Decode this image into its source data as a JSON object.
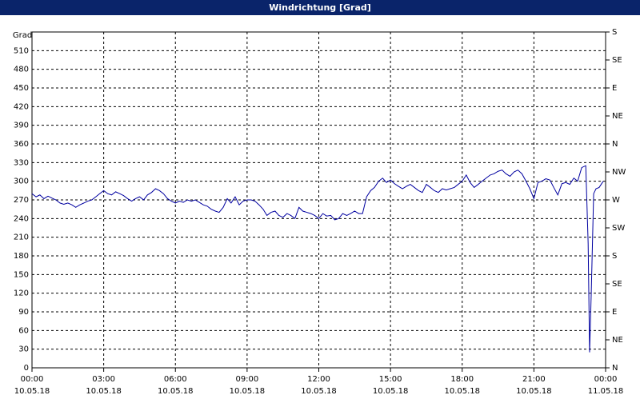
{
  "chart_data": {
    "type": "line",
    "title": "Windrichtung [Grad]",
    "ylabel": "Grad",
    "xlim": [
      0,
      24
    ],
    "xticks": [
      {
        "value": 0,
        "label": "00:00",
        "date": "10.05.18"
      },
      {
        "value": 3,
        "label": "03:00",
        "date": "10.05.18"
      },
      {
        "value": 6,
        "label": "06:00",
        "date": "10.05.18"
      },
      {
        "value": 9,
        "label": "09:00",
        "date": "10.05.18"
      },
      {
        "value": 12,
        "label": "12:00",
        "date": "10.05.18"
      },
      {
        "value": 15,
        "label": "15:00",
        "date": "10.05.18"
      },
      {
        "value": 18,
        "label": "18:00",
        "date": "10.05.18"
      },
      {
        "value": 21,
        "label": "21:00",
        "date": "10.05.18"
      },
      {
        "value": 24,
        "label": "00:00",
        "date": "11.05.18"
      }
    ],
    "ylim": [
      0,
      540
    ],
    "yticks": [
      0,
      30,
      60,
      90,
      120,
      150,
      180,
      210,
      240,
      270,
      300,
      330,
      360,
      390,
      420,
      450,
      480,
      510
    ],
    "y2lim": [
      0,
      540
    ],
    "y2ticks": [
      {
        "value": 0,
        "label": "N"
      },
      {
        "value": 45,
        "label": "NE"
      },
      {
        "value": 90,
        "label": "E"
      },
      {
        "value": 135,
        "label": "SE"
      },
      {
        "value": 180,
        "label": "S"
      },
      {
        "value": 225,
        "label": "SW"
      },
      {
        "value": 270,
        "label": "W"
      },
      {
        "value": 315,
        "label": "NW"
      },
      {
        "value": 360,
        "label": "N"
      },
      {
        "value": 405,
        "label": "NE"
      },
      {
        "value": 450,
        "label": "E"
      },
      {
        "value": 495,
        "label": "SE"
      },
      {
        "value": 540,
        "label": "S"
      }
    ],
    "grid": true,
    "series": [
      {
        "color": "#0000a0",
        "x": [
          0,
          0.17,
          0.33,
          0.5,
          0.67,
          0.83,
          1,
          1.17,
          1.33,
          1.5,
          1.67,
          1.83,
          2,
          2.17,
          2.33,
          2.5,
          2.67,
          2.83,
          3,
          3.17,
          3.33,
          3.5,
          3.67,
          3.83,
          4,
          4.17,
          4.33,
          4.5,
          4.67,
          4.83,
          5,
          5.17,
          5.33,
          5.5,
          5.67,
          5.83,
          6,
          6.17,
          6.33,
          6.5,
          6.67,
          6.83,
          7,
          7.17,
          7.33,
          7.5,
          7.67,
          7.83,
          8,
          8.17,
          8.33,
          8.5,
          8.67,
          8.83,
          9,
          9.17,
          9.33,
          9.5,
          9.67,
          9.83,
          10,
          10.17,
          10.33,
          10.5,
          10.67,
          10.83,
          11,
          11.17,
          11.33,
          11.5,
          11.67,
          11.83,
          12,
          12.17,
          12.33,
          12.5,
          12.67,
          12.83,
          13,
          13.17,
          13.33,
          13.5,
          13.67,
          13.83,
          14,
          14.17,
          14.33,
          14.5,
          14.67,
          14.83,
          15,
          15.17,
          15.33,
          15.5,
          15.67,
          15.83,
          16,
          16.17,
          16.33,
          16.5,
          16.67,
          16.83,
          17,
          17.17,
          17.33,
          17.5,
          17.67,
          17.83,
          18,
          18.17,
          18.33,
          18.5,
          18.67,
          18.83,
          19,
          19.17,
          19.33,
          19.5,
          19.67,
          19.83,
          20,
          20.17,
          20.33,
          20.5,
          20.67,
          20.83,
          21,
          21.17,
          21.33,
          21.5,
          21.67,
          21.83,
          22,
          22.17,
          22.33,
          22.5,
          22.67,
          22.83,
          23,
          23.17,
          23.27,
          23.33,
          23.4,
          23.5,
          23.6,
          23.73,
          23.9
        ],
        "values": [
          280,
          275,
          278,
          272,
          276,
          273,
          270,
          265,
          263,
          265,
          262,
          258,
          262,
          265,
          268,
          270,
          275,
          280,
          285,
          280,
          278,
          283,
          280,
          277,
          272,
          268,
          272,
          275,
          270,
          278,
          282,
          288,
          285,
          280,
          272,
          268,
          265,
          268,
          266,
          270,
          268,
          270,
          266,
          262,
          260,
          255,
          252,
          250,
          258,
          272,
          265,
          275,
          262,
          268,
          270,
          270,
          268,
          262,
          255,
          245,
          250,
          252,
          245,
          242,
          248,
          245,
          240,
          258,
          252,
          250,
          248,
          245,
          240,
          248,
          244,
          245,
          238,
          240,
          248,
          245,
          248,
          252,
          248,
          248,
          275,
          285,
          290,
          300,
          305,
          298,
          302,
          296,
          292,
          288,
          292,
          295,
          290,
          285,
          282,
          295,
          290,
          285,
          282,
          288,
          286,
          288,
          290,
          295,
          300,
          310,
          298,
          290,
          295,
          300,
          305,
          310,
          312,
          316,
          318,
          312,
          308,
          315,
          318,
          312,
          300,
          288,
          272,
          298,
          300,
          304,
          302,
          290,
          278,
          296,
          298,
          295,
          305,
          300,
          322,
          325,
          200,
          25,
          120,
          280,
          288,
          290,
          300
        ]
      }
    ]
  }
}
